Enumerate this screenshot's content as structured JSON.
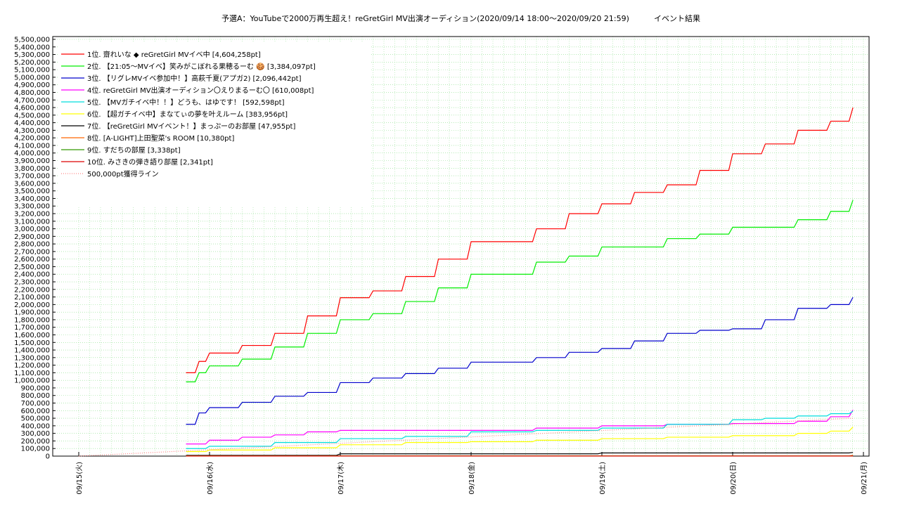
{
  "chart_data": {
    "type": "line",
    "title": "予選A：YouTubeで2000万再生超え！reGretGirl MV出演オーディション(2020/09/14 18:00〜2020/09/20 21:59)",
    "subtitle": "イベント結果",
    "xlabel": "",
    "ylabel": "",
    "grid": true,
    "legend_position": "top-left",
    "xlim": [
      "09/15 00:00",
      "09/21 00:00"
    ],
    "ylim": [
      0,
      5500000
    ],
    "x_tick_labels": [
      "09/15(火)",
      "09/16(水)",
      "09/17(木)",
      "09/18(金)",
      "09/19(土)",
      "09/20(日)",
      "09/21(月)"
    ],
    "y_tick_labels": [
      "0",
      "100,000",
      "200,000",
      "300,000",
      "400,000",
      "500,000",
      "600,000",
      "700,000",
      "800,000",
      "900,000",
      "1,000,000",
      "1,100,000",
      "1,200,000",
      "1,300,000",
      "1,400,000",
      "1,500,000",
      "1,600,000",
      "1,700,000",
      "1,800,000",
      "1,900,000",
      "2,000,000",
      "2,100,000",
      "2,200,000",
      "2,300,000",
      "2,400,000",
      "2,500,000",
      "2,600,000",
      "2,700,000",
      "2,800,000",
      "2,900,000",
      "3,000,000",
      "3,100,000",
      "3,200,000",
      "3,300,000",
      "3,400,000",
      "3,500,000",
      "3,600,000",
      "3,700,000",
      "3,800,000",
      "3,900,000",
      "4,000,000",
      "4,100,000",
      "4,200,000",
      "4,300,000",
      "4,400,000",
      "4,500,000",
      "4,600,000",
      "4,700,000",
      "4,800,000",
      "4,900,000",
      "5,000,000",
      "5,100,000",
      "5,200,000",
      "5,300,000",
      "5,400,000",
      "5,500,000"
    ],
    "series": [
      {
        "name": "1位. 齋れいな ◆ reGretGirl MVイベ中 [4,604,258pt]",
        "color": "#ff0000",
        "x": [
          0.82,
          0.92,
          1.0,
          1.25,
          1.5,
          1.75,
          2.0,
          2.25,
          2.5,
          2.75,
          3.0,
          3.25,
          3.5,
          3.75,
          4.0,
          4.25,
          4.5,
          4.75,
          5.0,
          5.25,
          5.5,
          5.75,
          5.92
        ],
        "y": [
          1100000,
          1250000,
          1360000,
          1460000,
          1620000,
          1850000,
          2090000,
          2180000,
          2370000,
          2600000,
          2830000,
          2830000,
          3000000,
          3200000,
          3330000,
          3480000,
          3580000,
          3770000,
          3990000,
          4120000,
          4300000,
          4420000,
          4600000
        ]
      },
      {
        "name": "2位. 【21:05〜MVイベ】笑みがこぼれる果穂るーむ 🍪 [3,384,097pt]",
        "color": "#00ee00",
        "x": [
          0.82,
          0.92,
          1.0,
          1.25,
          1.5,
          1.75,
          2.0,
          2.25,
          2.5,
          2.75,
          3.0,
          3.25,
          3.5,
          3.75,
          4.0,
          4.25,
          4.5,
          4.75,
          5.0,
          5.25,
          5.5,
          5.75,
          5.92
        ],
        "y": [
          980000,
          1100000,
          1190000,
          1280000,
          1440000,
          1620000,
          1800000,
          1880000,
          2040000,
          2220000,
          2400000,
          2400000,
          2560000,
          2640000,
          2760000,
          2760000,
          2870000,
          2930000,
          3020000,
          3020000,
          3120000,
          3230000,
          3380000
        ]
      },
      {
        "name": "3位. 【リグレMVイベ参加中！】高萩千夏(アプガ2) [2,096,442pt]",
        "color": "#0000cc",
        "x": [
          0.82,
          0.92,
          1.0,
          1.25,
          1.5,
          1.75,
          2.0,
          2.25,
          2.5,
          2.75,
          3.0,
          3.25,
          3.5,
          3.75,
          4.0,
          4.25,
          4.5,
          4.75,
          5.0,
          5.25,
          5.5,
          5.75,
          5.92
        ],
        "y": [
          420000,
          570000,
          640000,
          710000,
          790000,
          840000,
          970000,
          1030000,
          1090000,
          1160000,
          1240000,
          1240000,
          1300000,
          1370000,
          1420000,
          1520000,
          1620000,
          1660000,
          1680000,
          1800000,
          1950000,
          2000000,
          2096000
        ]
      },
      {
        "name": "4位. reGretGirl MV出演オーディション〇えりまるーむ〇 [610,008pt]",
        "color": "#ff00ff",
        "x": [
          0.82,
          1.0,
          1.25,
          1.5,
          1.75,
          2.0,
          2.5,
          3.0,
          3.5,
          4.0,
          4.5,
          5.0,
          5.5,
          5.75,
          5.92
        ],
        "y": [
          160000,
          210000,
          250000,
          280000,
          320000,
          340000,
          340000,
          340000,
          370000,
          400000,
          420000,
          430000,
          460000,
          520000,
          610000
        ]
      },
      {
        "name": "5位. 【MVガチイベ中！！】どうも、はゆです！ [592,598pt]",
        "color": "#00dddd",
        "x": [
          0.82,
          1.0,
          1.5,
          2.0,
          2.5,
          3.0,
          3.5,
          4.0,
          4.5,
          5.0,
          5.25,
          5.5,
          5.75,
          5.92
        ],
        "y": [
          100000,
          130000,
          180000,
          230000,
          260000,
          320000,
          340000,
          370000,
          420000,
          480000,
          500000,
          530000,
          560000,
          592000
        ]
      },
      {
        "name": "6位. 【超ガチイベ中】まなてぃの夢を叶えルーム [383,956pt]",
        "color": "#ffff00",
        "x": [
          0.82,
          1.0,
          1.5,
          2.0,
          2.5,
          3.0,
          3.5,
          4.0,
          4.5,
          5.0,
          5.5,
          5.75,
          5.92
        ],
        "y": [
          60000,
          80000,
          110000,
          150000,
          180000,
          190000,
          210000,
          230000,
          250000,
          270000,
          300000,
          330000,
          384000
        ]
      },
      {
        "name": "7位. 【reGretGirl MVイベント！】まっぷーのお部屋 [47,955pt]",
        "color": "#000000",
        "x": [
          0.82,
          2.0,
          4.0,
          5.92
        ],
        "y": [
          10000,
          30000,
          42000,
          48000
        ]
      },
      {
        "name": "8位. [A-LIGHT]上田聖菜's ROOM [10,380pt]",
        "color": "#ff6600",
        "x": [
          0.82,
          5.92
        ],
        "y": [
          3000,
          10380
        ]
      },
      {
        "name": "9位. すだちの部屋 [3,338pt]",
        "color": "#339900",
        "x": [
          0.82,
          5.92
        ],
        "y": [
          1000,
          3338
        ]
      },
      {
        "name": "10位. みさきの弾き語り部屋 [2,341pt]",
        "color": "#dd0000",
        "x": [
          0.82,
          5.92
        ],
        "y": [
          500,
          2341
        ]
      },
      {
        "name": "500,000pt獲得ライン",
        "color": "#ff8888",
        "dotted": true,
        "x": [
          0,
          5.92
        ],
        "y": [
          0,
          500000
        ]
      }
    ]
  }
}
